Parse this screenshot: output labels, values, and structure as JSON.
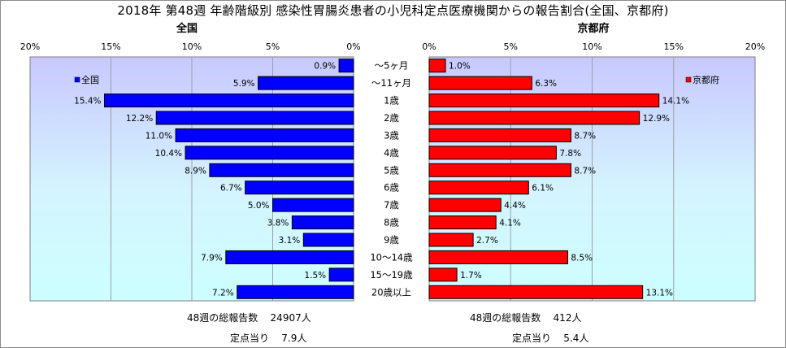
{
  "title": "2018年 第48週 年齢階級別 感染性胃腸炎患者の小児科定点医療機関からの報告割合(全国、京都府)",
  "chart_data": {
    "type": "bar",
    "categories": [
      "～5ヶ月",
      "～11ヶ月",
      "1歳",
      "2歳",
      "3歳",
      "4歳",
      "5歳",
      "6歳",
      "7歳",
      "8歳",
      "9歳",
      "10～14歳",
      "15～19歳",
      "20歳以上"
    ],
    "panels": [
      {
        "label": "全国",
        "legend": "全国",
        "color": "#0000ff",
        "direction": "left",
        "xlim": [
          0,
          20
        ],
        "ticks": [
          "0%",
          "5%",
          "10%",
          "15%",
          "20%"
        ],
        "values": [
          0.9,
          5.9,
          15.4,
          12.2,
          11.0,
          10.4,
          8.9,
          6.7,
          5.0,
          3.8,
          3.1,
          7.9,
          1.5,
          7.2
        ],
        "value_labels": [
          "0.9%",
          "5.9%",
          "15.4%",
          "12.2%",
          "11.0%",
          "10.4%",
          "8.9%",
          "6.7%",
          "5.0%",
          "3.8%",
          "3.1%",
          "7.9%",
          "1.5%",
          "7.2%"
        ]
      },
      {
        "label": "京都府",
        "legend": "京都府",
        "color": "#ff0000",
        "direction": "right",
        "xlim": [
          0,
          20
        ],
        "ticks": [
          "0%",
          "5%",
          "10%",
          "15%",
          "20%"
        ],
        "values": [
          1.0,
          6.3,
          14.1,
          12.9,
          8.7,
          7.8,
          8.7,
          6.1,
          4.4,
          4.1,
          2.7,
          8.5,
          1.7,
          13.1
        ],
        "value_labels": [
          "1.0%",
          "6.3%",
          "14.1%",
          "12.9%",
          "8.7%",
          "7.8%",
          "8.7%",
          "6.1%",
          "4.4%",
          "4.1%",
          "2.7%",
          "8.5%",
          "1.7%",
          "13.1%"
        ]
      }
    ],
    "grid": true
  },
  "footer": {
    "national": {
      "total_label": "48週の総報告数",
      "total_value": "24907人",
      "per_label": "定点当り",
      "per_value": "7.9人"
    },
    "kyoto": {
      "total_label": "48週の総報告数",
      "total_value": "412人",
      "per_label": "定点当り",
      "per_value": "5.4人"
    }
  }
}
